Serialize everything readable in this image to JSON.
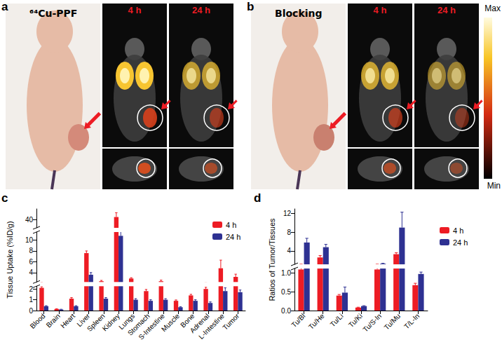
{
  "panels": [
    {
      "label": "a",
      "title": "⁶⁴Cu-PPF",
      "times": [
        "4 h",
        "24 h"
      ]
    },
    {
      "label": "b",
      "title": "Blocking",
      "times": [
        "4 h",
        "24 h"
      ]
    }
  ],
  "colorbar": {
    "max_label": "Max",
    "min_label": "Min"
  },
  "chart_data": [
    {
      "label": "c",
      "type": "bar",
      "y_label": "Tissue Uptake (%ID/g)",
      "categories": [
        "Blood",
        "Brain",
        "Heart",
        "Liver",
        "Spleen",
        "Kidney",
        "Lungs",
        "Stomach",
        "S-Intestine",
        "Muscle",
        "Bone",
        "Adrenal",
        "L-Intestine",
        "Tumor"
      ],
      "series": [
        {
          "name": "4 h",
          "color": "#ed1c24",
          "values": [
            2.1,
            0.15,
            1.1,
            7.6,
            2.4,
            40.5,
            2.9,
            1.8,
            2.4,
            0.9,
            1.4,
            2.0,
            4.8,
            3.2
          ],
          "errors": [
            0.1,
            0.02,
            0.1,
            0.4,
            0.15,
            0.8,
            0.15,
            0.15,
            0.2,
            0.08,
            0.1,
            0.15,
            1.5,
            0.5
          ]
        },
        {
          "name": "24 h",
          "color": "#2e3192",
          "values": [
            0.4,
            0.1,
            0.4,
            3.6,
            1.1,
            10.8,
            1.0,
            0.9,
            1.0,
            0.3,
            0.9,
            0.7,
            1.8,
            1.7
          ],
          "errors": [
            0.05,
            0.02,
            0.05,
            0.4,
            0.1,
            0.8,
            0.1,
            0.1,
            0.1,
            0.05,
            0.1,
            0.1,
            0.3,
            0.2
          ]
        }
      ],
      "ylim": [
        0,
        42
      ],
      "yticks": [
        0,
        1,
        2,
        4,
        6,
        8,
        10,
        40
      ],
      "legend": "upper right"
    },
    {
      "label": "d",
      "type": "bar",
      "y_label": "Ratios of Tumor/Tissues",
      "categories": [
        "Tu/Bl",
        "Tu/He",
        "Tu/Li",
        "Tu/Ki",
        "Tu/S-In",
        "Tu/Mu",
        "T/L-In"
      ],
      "series": [
        {
          "name": "4 h",
          "color": "#ed1c24",
          "values": [
            1.1,
            2.6,
            0.4,
            0.08,
            1.1,
            3.3,
            0.68
          ],
          "errors": [
            0.05,
            0.4,
            0.03,
            0.01,
            0.05,
            0.3,
            0.05
          ]
        },
        {
          "name": "24 h",
          "color": "#2e3192",
          "values": [
            5.8,
            4.8,
            0.48,
            0.12,
            1.25,
            9.0,
            0.98
          ],
          "errors": [
            0.9,
            0.6,
            0.15,
            0.01,
            0.1,
            3.3,
            0.05
          ]
        }
      ],
      "ylim": [
        0,
        13
      ],
      "yticks": [
        {
          "value": 0,
          "label": "0.0"
        },
        {
          "value": 0.5,
          "label": "0.5"
        },
        {
          "value": 1,
          "label": "1.0"
        },
        4,
        8,
        12
      ],
      "legend": "upper right"
    }
  ]
}
